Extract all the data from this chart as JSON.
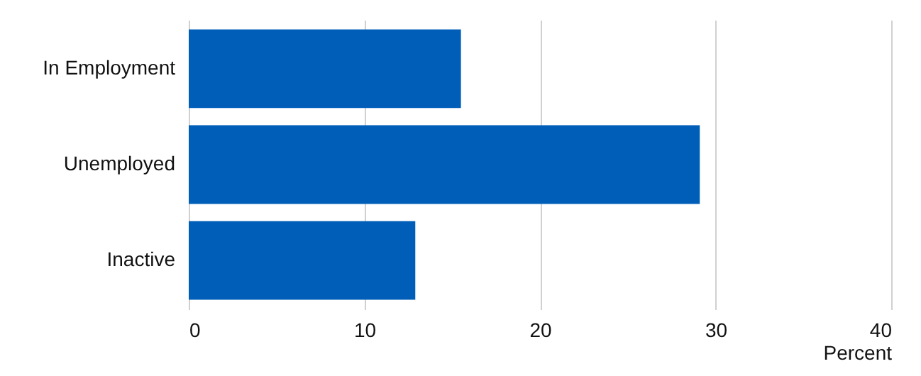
{
  "chart_data": {
    "type": "bar",
    "orientation": "horizontal",
    "categories": [
      "In Employment",
      "Unemployed",
      "Inactive"
    ],
    "values": [
      15.5,
      29.1,
      12.9
    ],
    "color": "#005eb8",
    "xlabel": "Percent",
    "xlim": [
      0,
      40
    ],
    "xticks": [
      0,
      10,
      20,
      30,
      40
    ],
    "grid": "x"
  }
}
